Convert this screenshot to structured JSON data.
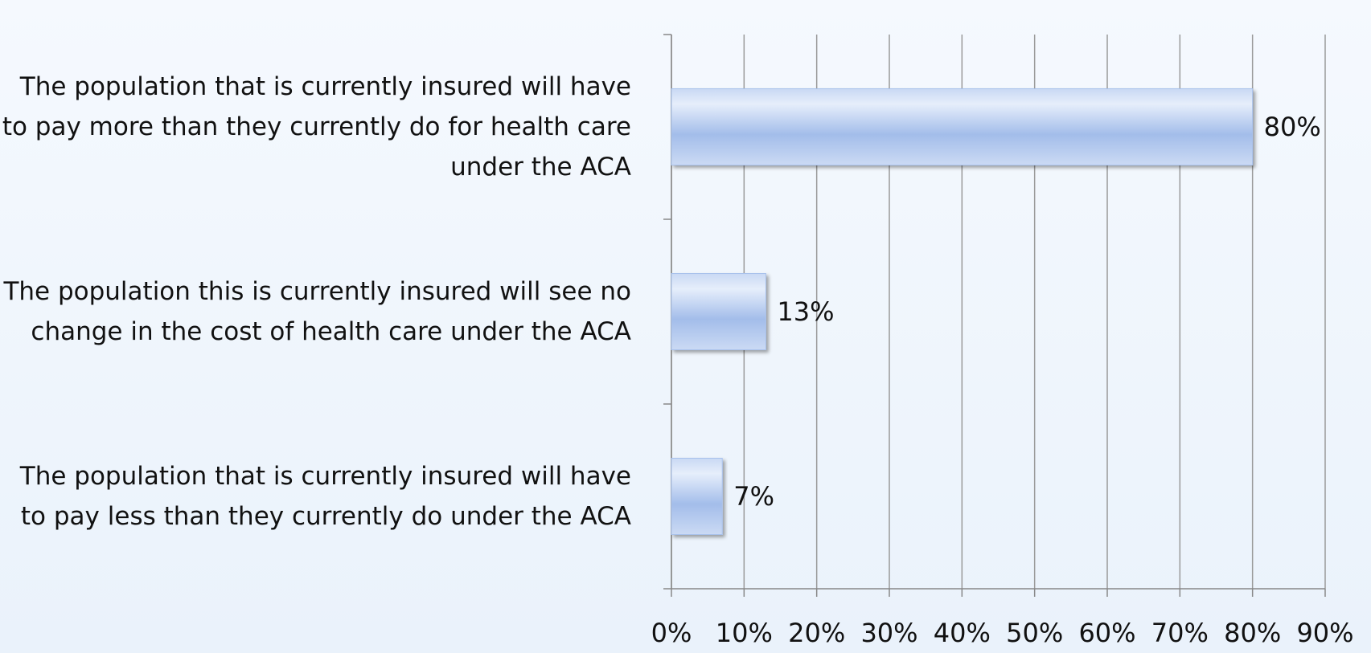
{
  "chart_data": {
    "type": "bar",
    "orientation": "horizontal",
    "categories": [
      "The population that is currently insured will have to pay more than they currently do for health care under the ACA",
      "The population this is currently insured will see no change in the cost of health care under the ACA",
      "The population that is currently insured will have to pay less than they currently do under the ACA"
    ],
    "values": [
      80,
      13,
      7
    ],
    "value_labels": [
      "80%",
      "13%",
      "7%"
    ],
    "color": "#a9c2ec",
    "xlim": [
      0,
      90
    ],
    "xticks": [
      {
        "value": 0,
        "label": "0%"
      },
      {
        "value": 10,
        "label": "10%"
      },
      {
        "value": 20,
        "label": "20%"
      },
      {
        "value": 30,
        "label": "30%"
      },
      {
        "value": 40,
        "label": "40%"
      },
      {
        "value": 50,
        "label": "50%"
      },
      {
        "value": 60,
        "label": "60%"
      },
      {
        "value": 70,
        "label": "70%"
      },
      {
        "value": 80,
        "label": "80%"
      },
      {
        "value": 90,
        "label": "90%"
      }
    ],
    "grid": true
  }
}
